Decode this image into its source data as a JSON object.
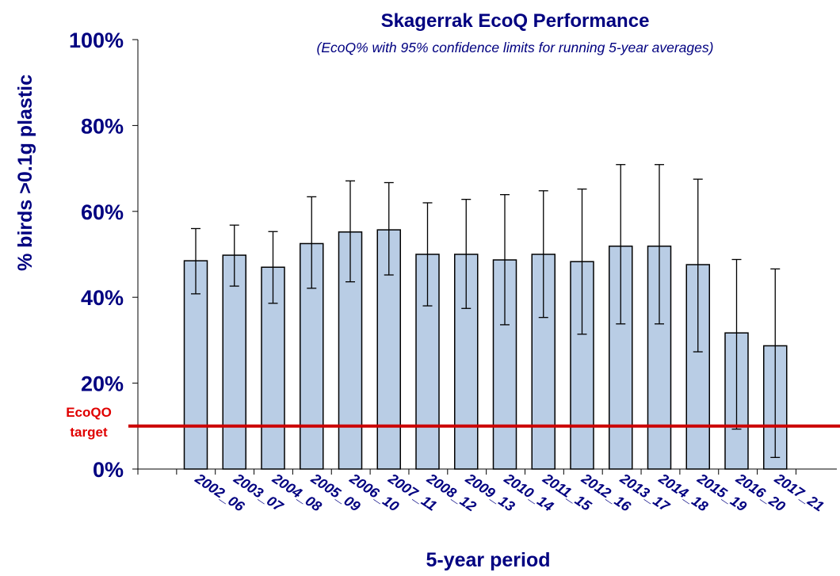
{
  "chart_data": {
    "type": "bar",
    "title": "Skagerrak EcoQ Performance",
    "subtitle": "(EcoQ% with 95% confidence limits for running 5-year averages)",
    "xlabel": "5-year period",
    "ylabel": "% birds >0.1g plastic",
    "categories": [
      "2002_06",
      "2003_07",
      "2004_08",
      "2005_09",
      "2006_10",
      "2007_11",
      "2008_12",
      "2009_13",
      "2010_14",
      "2011_15",
      "2012_16",
      "2013_17",
      "2014_18",
      "2015_19",
      "2016_20",
      "2017_21"
    ],
    "values": [
      48.5,
      49.8,
      47.0,
      52.5,
      55.2,
      55.7,
      50.0,
      50.0,
      48.7,
      50.0,
      48.3,
      51.9,
      51.9,
      47.6,
      31.7,
      28.7
    ],
    "error_upper": [
      56.0,
      56.8,
      55.3,
      63.4,
      67.1,
      66.7,
      62.0,
      62.8,
      63.9,
      64.8,
      65.2,
      70.9,
      70.9,
      67.5,
      48.8,
      46.6
    ],
    "error_lower": [
      40.8,
      42.6,
      38.6,
      42.1,
      43.6,
      45.2,
      38.0,
      37.4,
      33.6,
      35.3,
      31.4,
      33.8,
      33.8,
      27.3,
      9.3,
      2.7
    ],
    "ylim": [
      0,
      100
    ],
    "yticks": [
      0,
      20,
      40,
      60,
      80,
      100
    ],
    "ytick_labels": [
      "0%",
      "20%",
      "40%",
      "60%",
      "80%",
      "100%"
    ],
    "target_value": 10,
    "target_label_line1": "EcoQO",
    "target_label_line2": "target",
    "grid": false,
    "legend": "none",
    "colors": {
      "bar_fill": "#b9cde5",
      "bar_stroke": "#000000",
      "text": "#000080",
      "target_line": "#cc0000",
      "target_text": "#e00000"
    }
  }
}
